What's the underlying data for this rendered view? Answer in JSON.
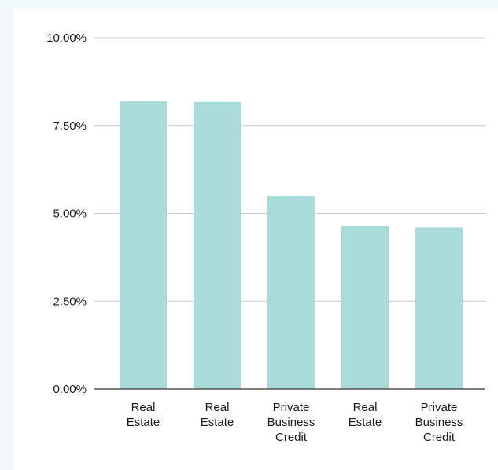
{
  "chart_data": {
    "type": "bar",
    "title": "",
    "xlabel": "",
    "ylabel": "",
    "ylim": [
      0,
      10
    ],
    "yticks": [
      "0.00%",
      "2.50%",
      "5.00%",
      "7.50%",
      "10.00%"
    ],
    "ytick_values": [
      0,
      2.5,
      5,
      7.5,
      10
    ],
    "categories": [
      [
        "Real",
        "Estate"
      ],
      [
        "Real",
        "Estate"
      ],
      [
        "Private",
        "Business",
        "Credit"
      ],
      [
        "Real",
        "Estate"
      ],
      [
        "Private",
        "Business",
        "Credit"
      ]
    ],
    "values": [
      8.2,
      8.17,
      5.5,
      4.63,
      4.6
    ],
    "grid": true,
    "legend": "none",
    "colors": {
      "bar": "#a8dcd9",
      "grid": "#cccccc",
      "axis": "#333333",
      "background": "#f1f8fc",
      "plot_background": "#ffffff"
    }
  }
}
